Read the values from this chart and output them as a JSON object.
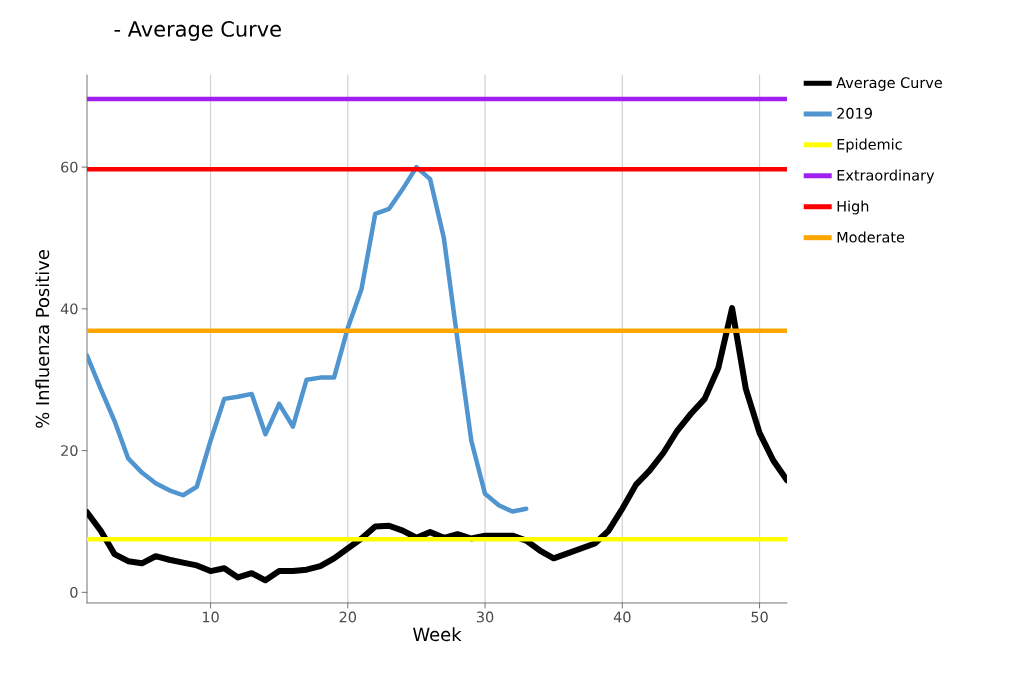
{
  "chart_data": {
    "type": "line",
    "title": "- Average Curve",
    "xlabel": "Week",
    "ylabel": "% Influenza Positive",
    "xlim": [
      1,
      52
    ],
    "ylim": [
      -1.5,
      73
    ],
    "xticks": [
      10,
      20,
      30,
      40,
      50
    ],
    "yticks": [
      0,
      20,
      40,
      60
    ],
    "grid": "x",
    "legend": "top right",
    "line_style": "solid",
    "marker": "none",
    "series": [
      {
        "name": "Average Curve",
        "color": "#000000",
        "x": [
          1,
          2,
          3,
          4,
          5,
          6,
          7,
          8,
          9,
          10,
          11,
          12,
          13,
          14,
          15,
          16,
          17,
          18,
          19,
          20,
          21,
          22,
          23,
          24,
          25,
          26,
          27,
          28,
          29,
          30,
          31,
          32,
          33,
          34,
          35,
          36,
          37,
          38,
          39,
          40,
          41,
          42,
          43,
          44,
          45,
          46,
          47,
          48,
          49,
          50,
          51,
          52
        ],
        "values": [
          11.3,
          8.7,
          5.4,
          4.4,
          4.1,
          5.1,
          4.6,
          4.2,
          3.8,
          3.0,
          3.4,
          2.1,
          2.7,
          1.7,
          3.0,
          3.0,
          3.2,
          3.7,
          4.8,
          6.2,
          7.6,
          9.3,
          9.4,
          8.7,
          7.7,
          8.5,
          7.7,
          8.2,
          7.6,
          8.0,
          8.0,
          8.0,
          7.3,
          5.9,
          4.8,
          5.5,
          6.2,
          6.9,
          8.7,
          11.8,
          15.2,
          17.2,
          19.7,
          22.8,
          25.2,
          27.3,
          31.7,
          40.1,
          28.7,
          22.5,
          18.6,
          15.8
        ]
      },
      {
        "name": "2019",
        "color": "#5095cf",
        "x": [
          1,
          2,
          3,
          4,
          5,
          6,
          7,
          8,
          9,
          10,
          11,
          12,
          13,
          14,
          15,
          16,
          17,
          18,
          19,
          20,
          21,
          22,
          23,
          24,
          25,
          26,
          27,
          28,
          29,
          30,
          31,
          32,
          33
        ],
        "values": [
          33.4,
          28.7,
          24.2,
          18.9,
          16.9,
          15.4,
          14.4,
          13.7,
          14.9,
          21.4,
          27.3,
          27.6,
          28.0,
          22.3,
          26.6,
          23.4,
          30.0,
          30.3,
          30.3,
          37.3,
          42.8,
          53.4,
          54.1,
          56.9,
          60.0,
          58.3,
          50.0,
          35.5,
          21.4,
          13.9,
          12.3,
          11.4,
          11.8
        ]
      },
      {
        "name": "Epidemic",
        "color": "#ffff00",
        "x": [
          1,
          52
        ],
        "values": [
          7.5,
          7.5
        ]
      },
      {
        "name": "Extraordinary",
        "color": "#a020f0",
        "x": [
          1,
          52
        ],
        "values": [
          69.6,
          69.6
        ]
      },
      {
        "name": "High",
        "color": "#ff0000",
        "x": [
          1,
          52
        ],
        "values": [
          59.7,
          59.7
        ]
      },
      {
        "name": "Moderate",
        "color": "#ffa500",
        "x": [
          1,
          52
        ],
        "values": [
          36.9,
          36.9
        ]
      }
    ]
  }
}
